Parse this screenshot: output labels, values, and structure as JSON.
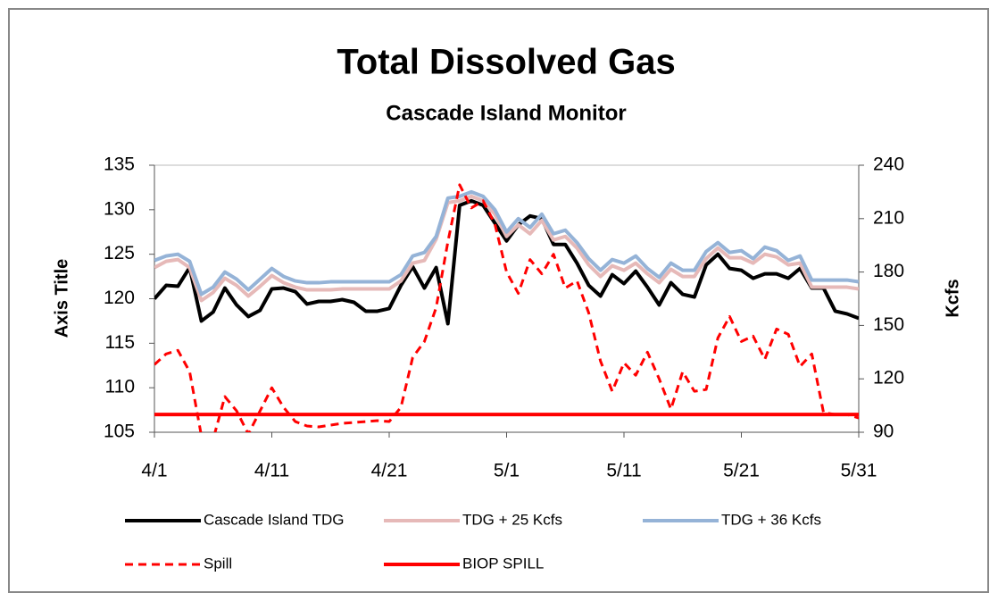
{
  "chart_data": {
    "type": "line",
    "title": "Total Dissolved Gas",
    "subtitle": "Cascade Island Monitor",
    "y_label": "Axis Title",
    "y2_label": "Kcfs",
    "legend": "bottom",
    "categories": [
      "4/1",
      null,
      null,
      null,
      null,
      null,
      null,
      null,
      null,
      null,
      "4/11",
      null,
      null,
      null,
      null,
      null,
      null,
      null,
      null,
      null,
      "4/21",
      null,
      null,
      null,
      null,
      null,
      null,
      null,
      null,
      null,
      "5/1",
      null,
      null,
      null,
      null,
      null,
      null,
      null,
      null,
      null,
      "5/11",
      null,
      null,
      null,
      null,
      null,
      null,
      null,
      null,
      null,
      "5/21",
      null,
      null,
      null,
      null,
      null,
      null,
      null,
      null,
      null,
      "5/31"
    ],
    "ylim": [
      105,
      135
    ],
    "yticks": [
      105,
      110,
      115,
      120,
      125,
      130,
      135
    ],
    "y2lim": [
      90,
      240
    ],
    "y2ticks": [
      90,
      120,
      150,
      180,
      210,
      240
    ],
    "series": [
      {
        "name": "Cascade Island TDG",
        "color": "#000000",
        "line_style": "solid",
        "axis": "y",
        "values": [
          120,
          121.5,
          121.4,
          123.5,
          117.5,
          118.5,
          121.2,
          119.3,
          118,
          118.7,
          121.1,
          121.2,
          120.8,
          119.4,
          119.7,
          119.7,
          119.9,
          119.6,
          118.6,
          118.6,
          118.9,
          121.5,
          123.6,
          121.2,
          123.5,
          117.2,
          130.5,
          131,
          130.5,
          128.5,
          126.5,
          128.3,
          129.3,
          129,
          126.1,
          126.1,
          124,
          121.5,
          120.3,
          122.7,
          121.7,
          123.1,
          121.3,
          119.3,
          121.8,
          120.5,
          120.2,
          123.8,
          125,
          123.4,
          123.2,
          122.3,
          122.8,
          122.8,
          122.3,
          123.4,
          121.2,
          121.2,
          118.6,
          118.3,
          117.8
        ]
      },
      {
        "name": "TDG + 25 Kcfs",
        "color": "#e6b9b8",
        "line_style": "solid",
        "axis": "y",
        "values": [
          123.5,
          124.2,
          124.4,
          123.5,
          119.8,
          120.7,
          122.3,
          121.5,
          120.3,
          121.4,
          122.6,
          121.8,
          121.3,
          121,
          121,
          121,
          121.1,
          121.1,
          121.1,
          121.1,
          121.1,
          122,
          124,
          124.3,
          126.7,
          130.8,
          131,
          131.5,
          131,
          129.5,
          127,
          128.3,
          127.3,
          128.8,
          126.6,
          127,
          125.7,
          123.8,
          122.5,
          123.7,
          123.2,
          124,
          122.8,
          121.8,
          123.3,
          122.5,
          122.5,
          124.5,
          125.7,
          124.6,
          124.6,
          124,
          125,
          124.7,
          123.8,
          124,
          121.3,
          121.3,
          121.3,
          121.3,
          121.1
        ]
      },
      {
        "name": "TDG + 36 Kcfs",
        "color": "#95b3d7",
        "line_style": "solid",
        "axis": "y",
        "values": [
          124.3,
          124.8,
          125,
          124.2,
          120.5,
          121.3,
          123,
          122.2,
          121,
          122.2,
          123.4,
          122.5,
          122,
          121.8,
          121.8,
          121.9,
          121.9,
          121.9,
          121.9,
          121.9,
          121.9,
          122.7,
          124.8,
          125.2,
          127,
          131.3,
          131.5,
          132,
          131.5,
          130,
          127.5,
          129,
          128,
          129.5,
          127.3,
          127.7,
          126.3,
          124.5,
          123.2,
          124.4,
          124,
          124.8,
          123.4,
          122.4,
          124,
          123.2,
          123.2,
          125.3,
          126.3,
          125.2,
          125.4,
          124.5,
          125.8,
          125.4,
          124.3,
          124.8,
          122.1,
          122.1,
          122.1,
          122.1,
          121.9
        ]
      },
      {
        "name": "Spill",
        "color": "#ff0000",
        "line_style": "dashed",
        "axis": "y2",
        "values": [
          128,
          134,
          136,
          124,
          88,
          86,
          110,
          102,
          89,
          102,
          115,
          104,
          96,
          93.5,
          93,
          94,
          95,
          95.5,
          96,
          96.5,
          96,
          104,
          132,
          141,
          160,
          197,
          229,
          216,
          220,
          207,
          180,
          168,
          187,
          179,
          190,
          171,
          175,
          157,
          130,
          113,
          129,
          122,
          135,
          120,
          103,
          124,
          113,
          114,
          143,
          155,
          141,
          144,
          131,
          148,
          145,
          127,
          134,
          101,
          100,
          100,
          98
        ]
      },
      {
        "name": "BIOP SPILL",
        "color": "#ff0000",
        "line_style": "solid",
        "axis": "y2",
        "values": [
          100,
          100,
          100,
          100,
          100,
          100,
          100,
          100,
          100,
          100,
          100,
          100,
          100,
          100,
          100,
          100,
          100,
          100,
          100,
          100,
          100,
          100,
          100,
          100,
          100,
          100,
          100,
          100,
          100,
          100,
          100,
          100,
          100,
          100,
          100,
          100,
          100,
          100,
          100,
          100,
          100,
          100,
          100,
          100,
          100,
          100,
          100,
          100,
          100,
          100,
          100,
          100,
          100,
          100,
          100,
          100,
          100,
          100,
          100,
          100,
          100
        ]
      }
    ]
  }
}
